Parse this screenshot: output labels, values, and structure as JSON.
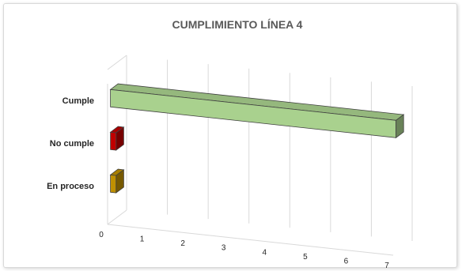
{
  "chart_data": {
    "type": "bar",
    "orientation": "horizontal",
    "style": "3d",
    "title": "CUMPLIMIENTO LÍNEA 4",
    "categories": [
      "Cumple",
      "No cumple",
      "En proceso"
    ],
    "values": [
      7,
      0,
      0
    ],
    "colors": [
      "#a9d18e",
      "#c00000",
      "#bf9000"
    ],
    "xlim": [
      0,
      7
    ],
    "xticks": [
      "0",
      "1",
      "2",
      "3",
      "4",
      "5",
      "6",
      "7"
    ],
    "grid": true,
    "legend": "none"
  }
}
